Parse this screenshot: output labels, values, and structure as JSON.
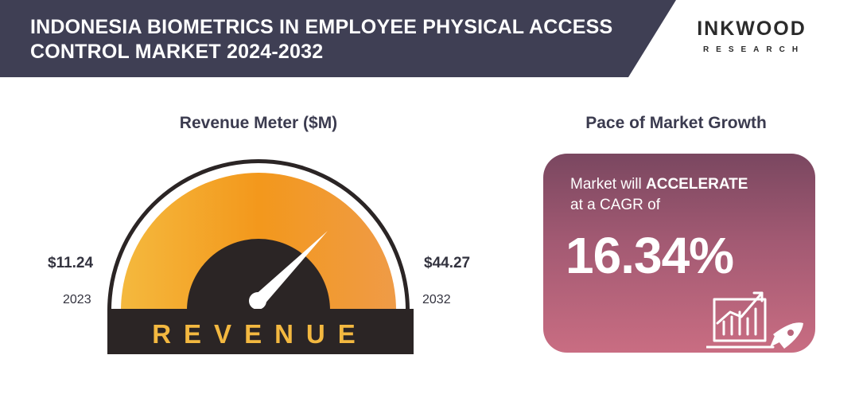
{
  "header": {
    "title": "INDONESIA BIOMETRICS IN EMPLOYEE PHYSICAL ACCESS CONTROL MARKET 2024-2032",
    "logo_main": "INKWOOD",
    "logo_sub": "RESEARCH"
  },
  "revenue_meter": {
    "title": "Revenue Meter ($M)",
    "start_value": "$11.24",
    "start_year": "2023",
    "end_value": "$44.27",
    "end_year": "2032",
    "label": "REVENUE"
  },
  "growth": {
    "title": "Pace of Market Growth",
    "text_prefix": "Market will ",
    "text_emphasis": "ACCELERATE",
    "text_suffix": "at a CAGR of",
    "value": "16.34%"
  },
  "colors": {
    "header_bg": "#3f3f54",
    "gauge_dark": "#2b2525",
    "gauge_orange": "#f39a1f",
    "label_gold": "#f3b840",
    "card_top": "#7a4760",
    "card_bottom": "#c96d82"
  },
  "icons": {
    "growth": "chart-rocket-icon"
  }
}
